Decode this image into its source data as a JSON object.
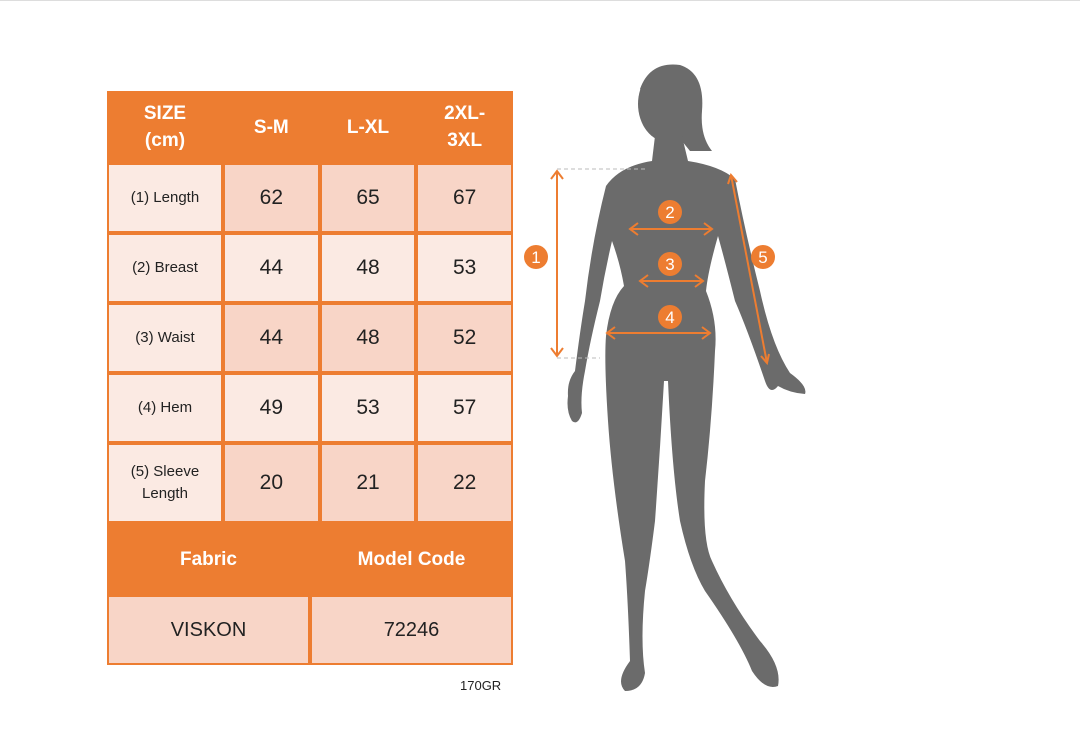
{
  "table": {
    "headers": [
      "SIZE\n(cm)",
      "S-M",
      "L-XL",
      "2XL-\n3XL"
    ],
    "rows": [
      {
        "label": "(1) Length",
        "values": [
          "62",
          "65",
          "67"
        ]
      },
      {
        "label": "(2) Breast",
        "values": [
          "44",
          "48",
          "53"
        ]
      },
      {
        "label": "(3) Waist",
        "values": [
          "44",
          "48",
          "52"
        ]
      },
      {
        "label": "(4) Hem",
        "values": [
          "49",
          "53",
          "57"
        ]
      },
      {
        "label": "(5) Sleeve Length",
        "values": [
          "20",
          "21",
          "22"
        ]
      }
    ],
    "footer_headers": [
      "Fabric",
      "Model Code"
    ],
    "footer_values": [
      "VISKON",
      "72246"
    ]
  },
  "note": "170GR",
  "markers": [
    "1",
    "2",
    "3",
    "4",
    "5"
  ],
  "colors": {
    "accent": "#ED7D31",
    "silhouette": "#6B6B6B",
    "cell_dark": "#F8D5C7",
    "cell_light": "#FBEAE3"
  }
}
